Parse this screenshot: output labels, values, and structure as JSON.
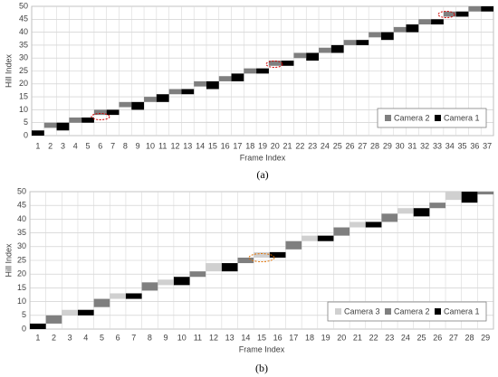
{
  "chart_data": [
    {
      "type": "range-bar",
      "xlabel": "Frame Index",
      "ylabel": "Hill Index",
      "caption": "(a)",
      "categories": [
        1,
        2,
        3,
        4,
        5,
        6,
        7,
        8,
        9,
        10,
        11,
        12,
        13,
        14,
        15,
        16,
        17,
        18,
        19,
        20,
        21,
        22,
        23,
        24,
        25,
        26,
        27,
        28,
        29,
        30,
        31,
        32,
        33,
        34,
        35,
        36,
        37
      ],
      "ylim": [
        0,
        50
      ],
      "yticks": [
        0,
        5,
        10,
        15,
        20,
        25,
        30,
        35,
        40,
        45,
        50
      ],
      "grid": true,
      "legend": "lower right",
      "series": [
        {
          "name": "Camera 2",
          "color": "#7f7f7f",
          "values": [
            null,
            [
              3,
              5
            ],
            null,
            [
              5,
              7
            ],
            null,
            [
              8,
              10
            ],
            null,
            [
              11,
              13
            ],
            null,
            [
              13,
              15
            ],
            null,
            [
              16,
              18
            ],
            null,
            [
              19,
              21
            ],
            null,
            [
              21,
              23
            ],
            null,
            [
              24,
              26
            ],
            null,
            [
              27,
              29
            ],
            null,
            [
              30,
              32
            ],
            null,
            [
              32,
              34
            ],
            null,
            [
              35,
              37
            ],
            null,
            [
              38,
              40
            ],
            null,
            [
              40,
              42
            ],
            null,
            [
              43,
              45
            ],
            null,
            [
              46,
              48
            ],
            null,
            [
              48,
              50
            ],
            null
          ]
        },
        {
          "name": "Camera 1",
          "color": "#000000",
          "values": [
            [
              0,
              2
            ],
            null,
            [
              2,
              5
            ],
            null,
            [
              5,
              7
            ],
            null,
            [
              8,
              10
            ],
            null,
            [
              10,
              13
            ],
            null,
            [
              13,
              16
            ],
            null,
            [
              16,
              18
            ],
            null,
            [
              18,
              21
            ],
            null,
            [
              21,
              24
            ],
            null,
            [
              24,
              26
            ],
            null,
            [
              27,
              29
            ],
            null,
            [
              29,
              32
            ],
            null,
            [
              32,
              35
            ],
            null,
            [
              35,
              37
            ],
            null,
            [
              37,
              40
            ],
            null,
            [
              40,
              43
            ],
            null,
            [
              43,
              45
            ],
            null,
            [
              46,
              48
            ],
            null,
            [
              48,
              50
            ]
          ]
        }
      ]
    },
    {
      "type": "range-bar",
      "xlabel": "Frame Index",
      "ylabel": "Hill Index",
      "caption": "(b)",
      "categories": [
        1,
        2,
        3,
        4,
        5,
        6,
        7,
        8,
        9,
        10,
        11,
        12,
        13,
        14,
        15,
        16,
        17,
        18,
        19,
        20,
        21,
        22,
        23,
        24,
        25,
        26,
        27,
        28,
        29
      ],
      "ylim": [
        0,
        50
      ],
      "yticks": [
        0,
        5,
        10,
        15,
        20,
        25,
        30,
        35,
        40,
        45,
        50
      ],
      "grid": true,
      "legend": "lower right",
      "series": [
        {
          "name": "Camera 3",
          "color": "#d0d0d0",
          "values": [
            null,
            null,
            [
              5,
              7
            ],
            null,
            null,
            [
              11,
              13
            ],
            null,
            null,
            [
              16,
              18
            ],
            null,
            null,
            [
              21,
              24
            ],
            null,
            null,
            [
              26,
              28
            ],
            null,
            null,
            [
              32,
              34
            ],
            null,
            null,
            [
              37,
              39
            ],
            null,
            null,
            [
              42,
              44
            ],
            null,
            null,
            [
              47,
              50
            ],
            null,
            null
          ]
        },
        {
          "name": "Camera 2",
          "color": "#7f7f7f",
          "values": [
            null,
            [
              2,
              5
            ],
            null,
            null,
            [
              8,
              11
            ],
            null,
            null,
            [
              14,
              17
            ],
            null,
            null,
            [
              19,
              21
            ],
            null,
            null,
            [
              24,
              26
            ],
            null,
            null,
            [
              29,
              32
            ],
            null,
            null,
            [
              34,
              37
            ],
            null,
            null,
            [
              39,
              42
            ],
            null,
            null,
            [
              44,
              46
            ],
            null,
            null,
            [
              49,
              50
            ]
          ]
        },
        {
          "name": "Camera 1",
          "color": "#000000",
          "values": [
            [
              0,
              2
            ],
            null,
            null,
            [
              5,
              7
            ],
            null,
            null,
            [
              11,
              13
            ],
            null,
            null,
            [
              16,
              19
            ],
            null,
            null,
            [
              21,
              24
            ],
            null,
            null,
            [
              26,
              28
            ],
            null,
            null,
            [
              32,
              34
            ],
            null,
            null,
            [
              37,
              39
            ],
            null,
            null,
            [
              41,
              44
            ],
            null,
            null,
            [
              46,
              50
            ],
            null
          ]
        }
      ]
    }
  ]
}
